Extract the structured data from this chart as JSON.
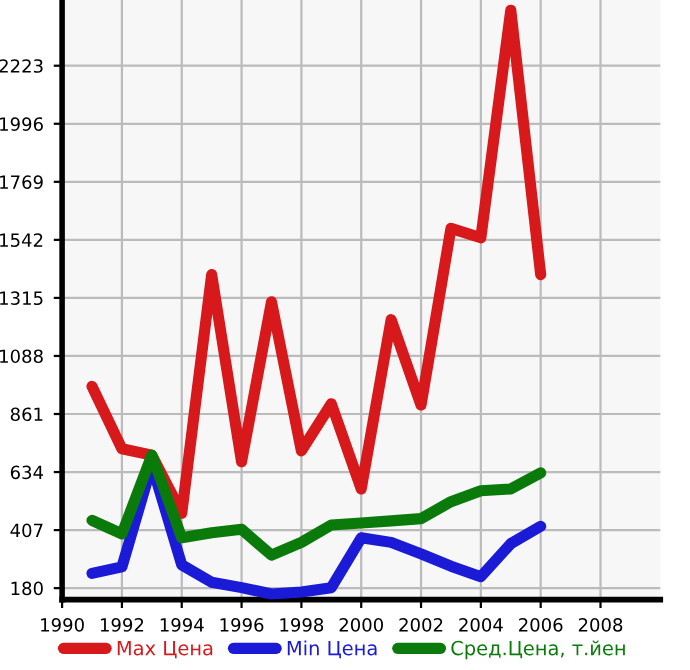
{
  "chart_data": {
    "type": "line",
    "x": [
      1991,
      1992,
      1993,
      1994,
      1995,
      1996,
      1997,
      1998,
      1999,
      2000,
      2001,
      2002,
      2003,
      2004,
      2005,
      2006
    ],
    "series": [
      {
        "name": "Max Цена",
        "color": "#d7191c",
        "values": [
          969,
          725,
          700,
          473,
          1406,
          674,
          1300,
          717,
          901,
          568,
          1230,
          896,
          1587,
          1550,
          2440,
          1406
        ]
      },
      {
        "name": "Min Цена",
        "color": "#1a1ad7",
        "values": [
          238,
          263,
          662,
          271,
          203,
          182,
          157,
          165,
          182,
          377,
          359,
          314,
          266,
          225,
          354,
          422
        ]
      },
      {
        "name": "Сред.Цена, т.йен",
        "color": "#0a7a0a",
        "values": [
          445,
          392,
          700,
          377,
          397,
          410,
          309,
          359,
          427,
          435,
          443,
          452,
          518,
          561,
          568,
          631
        ]
      }
    ],
    "xlim": [
      1990,
      2010
    ],
    "xticks": [
      1990,
      1992,
      1994,
      1996,
      1998,
      2000,
      2002,
      2004,
      2006,
      2008
    ],
    "ylim": [
      135,
      2480
    ],
    "yticks": [
      180,
      407,
      634,
      861,
      1088,
      1315,
      1542,
      1769,
      1996,
      2223
    ],
    "grid": true,
    "legend": "bottom",
    "marker": "none",
    "line_style": "solid"
  }
}
